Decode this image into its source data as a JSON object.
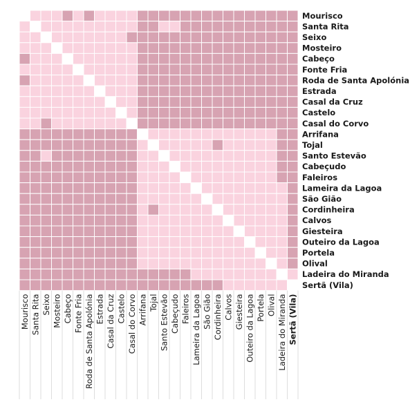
{
  "chart_data": {
    "type": "heatmap",
    "labels": [
      "Mourisco",
      "Santa Rita",
      "Seixo",
      "Mosteiro",
      "Cabeço",
      "Fonte Fria",
      "Roda de Santa Apolónia",
      "Estrada",
      "Casal da Cruz",
      "Castelo",
      "Casal do Corvo",
      "Arrifana",
      "Tojal",
      "Santo Estevão",
      "Cabeçudo",
      "Faleiros",
      "Lameira da Lagoa",
      "São Gião",
      "Cordinheira",
      "Calvos",
      "Giesteira",
      "Outeiro da Lagoa",
      "Portela",
      "Olival",
      "Ladeira do Miranda",
      "Sertã (Vila)"
    ],
    "highlighted_label": "Sertã (Vila)",
    "levels": {
      "light": 0,
      "dark": 1,
      "diagonal": null
    },
    "matrix": [
      [
        null,
        0,
        0,
        0,
        1,
        0,
        1,
        0,
        0,
        0,
        0,
        1,
        1,
        1,
        1,
        1,
        1,
        1,
        1,
        1,
        1,
        1,
        1,
        1,
        1,
        1
      ],
      [
        0,
        null,
        0,
        0,
        0,
        0,
        0,
        0,
        0,
        0,
        0,
        1,
        1,
        0,
        0,
        1,
        1,
        1,
        1,
        1,
        1,
        1,
        1,
        1,
        1,
        1
      ],
      [
        0,
        0,
        null,
        0,
        0,
        0,
        0,
        0,
        0,
        0,
        1,
        1,
        1,
        1,
        1,
        1,
        1,
        1,
        1,
        1,
        1,
        1,
        1,
        1,
        1,
        1
      ],
      [
        0,
        0,
        0,
        null,
        0,
        0,
        0,
        0,
        0,
        0,
        0,
        1,
        1,
        1,
        1,
        1,
        1,
        1,
        1,
        1,
        1,
        1,
        1,
        1,
        1,
        1
      ],
      [
        1,
        0,
        0,
        0,
        null,
        0,
        0,
        0,
        0,
        0,
        0,
        1,
        1,
        1,
        1,
        1,
        1,
        1,
        1,
        1,
        1,
        1,
        1,
        1,
        1,
        1
      ],
      [
        0,
        0,
        0,
        0,
        0,
        null,
        0,
        0,
        0,
        0,
        0,
        1,
        1,
        1,
        1,
        1,
        1,
        1,
        1,
        1,
        1,
        1,
        1,
        1,
        1,
        1
      ],
      [
        1,
        0,
        0,
        0,
        0,
        0,
        null,
        0,
        0,
        0,
        0,
        1,
        1,
        1,
        1,
        1,
        1,
        1,
        1,
        1,
        1,
        1,
        1,
        1,
        1,
        1
      ],
      [
        0,
        0,
        0,
        0,
        0,
        0,
        0,
        null,
        0,
        0,
        0,
        1,
        1,
        1,
        1,
        1,
        1,
        1,
        1,
        1,
        1,
        1,
        1,
        1,
        1,
        1
      ],
      [
        0,
        0,
        0,
        0,
        0,
        0,
        0,
        0,
        null,
        0,
        0,
        1,
        1,
        1,
        1,
        1,
        1,
        1,
        1,
        1,
        1,
        1,
        1,
        1,
        1,
        1
      ],
      [
        0,
        0,
        0,
        0,
        0,
        0,
        0,
        0,
        0,
        null,
        0,
        1,
        1,
        1,
        1,
        1,
        1,
        1,
        1,
        1,
        1,
        1,
        1,
        1,
        1,
        1
      ],
      [
        0,
        0,
        1,
        0,
        0,
        0,
        0,
        0,
        0,
        0,
        null,
        1,
        1,
        1,
        1,
        1,
        1,
        1,
        1,
        1,
        1,
        1,
        1,
        1,
        1,
        1
      ],
      [
        1,
        1,
        1,
        1,
        1,
        1,
        1,
        1,
        1,
        1,
        1,
        null,
        0,
        0,
        0,
        0,
        0,
        0,
        0,
        0,
        0,
        0,
        0,
        0,
        1,
        1
      ],
      [
        1,
        1,
        1,
        1,
        1,
        1,
        1,
        1,
        1,
        1,
        1,
        0,
        null,
        0,
        0,
        0,
        0,
        0,
        1,
        0,
        0,
        0,
        0,
        0,
        1,
        1
      ],
      [
        1,
        1,
        0,
        1,
        1,
        1,
        1,
        1,
        1,
        1,
        1,
        0,
        0,
        null,
        0,
        0,
        0,
        0,
        0,
        0,
        0,
        0,
        0,
        0,
        1,
        1
      ],
      [
        1,
        1,
        1,
        1,
        1,
        1,
        1,
        1,
        1,
        1,
        1,
        0,
        0,
        0,
        null,
        0,
        0,
        0,
        0,
        0,
        0,
        0,
        0,
        0,
        1,
        1
      ],
      [
        1,
        1,
        1,
        1,
        1,
        1,
        1,
        1,
        1,
        1,
        1,
        0,
        0,
        0,
        0,
        null,
        0,
        0,
        0,
        0,
        0,
        0,
        0,
        0,
        1,
        1
      ],
      [
        1,
        1,
        1,
        1,
        1,
        1,
        1,
        1,
        1,
        1,
        1,
        0,
        0,
        0,
        0,
        0,
        null,
        0,
        0,
        0,
        0,
        0,
        0,
        0,
        0,
        1
      ],
      [
        1,
        1,
        1,
        1,
        1,
        1,
        1,
        1,
        1,
        1,
        1,
        0,
        0,
        0,
        0,
        0,
        0,
        null,
        0,
        0,
        0,
        0,
        0,
        0,
        0,
        1
      ],
      [
        1,
        1,
        1,
        1,
        1,
        1,
        1,
        1,
        1,
        1,
        1,
        0,
        1,
        0,
        0,
        0,
        0,
        0,
        null,
        0,
        0,
        0,
        0,
        0,
        0,
        1
      ],
      [
        1,
        1,
        1,
        1,
        1,
        1,
        1,
        1,
        1,
        1,
        1,
        0,
        0,
        0,
        0,
        0,
        0,
        0,
        0,
        null,
        0,
        0,
        0,
        0,
        0,
        1
      ],
      [
        1,
        1,
        1,
        1,
        1,
        1,
        1,
        1,
        1,
        1,
        1,
        0,
        0,
        0,
        0,
        0,
        0,
        0,
        0,
        0,
        null,
        0,
        0,
        0,
        0,
        1
      ],
      [
        1,
        1,
        1,
        1,
        1,
        1,
        1,
        1,
        1,
        1,
        1,
        0,
        0,
        0,
        0,
        0,
        0,
        0,
        0,
        0,
        0,
        null,
        0,
        0,
        0,
        1
      ],
      [
        1,
        1,
        1,
        1,
        1,
        1,
        1,
        1,
        1,
        1,
        1,
        0,
        0,
        0,
        0,
        0,
        0,
        0,
        0,
        0,
        0,
        0,
        null,
        0,
        0,
        1
      ],
      [
        1,
        1,
        1,
        1,
        1,
        1,
        1,
        1,
        1,
        1,
        1,
        0,
        0,
        0,
        0,
        0,
        0,
        0,
        0,
        0,
        0,
        0,
        0,
        null,
        0,
        1
      ],
      [
        1,
        1,
        1,
        1,
        1,
        1,
        1,
        1,
        1,
        1,
        1,
        1,
        1,
        1,
        1,
        1,
        0,
        0,
        0,
        0,
        0,
        0,
        0,
        0,
        null,
        0
      ],
      [
        1,
        1,
        1,
        1,
        1,
        1,
        1,
        1,
        1,
        1,
        1,
        1,
        1,
        1,
        1,
        1,
        1,
        1,
        1,
        0,
        0,
        0,
        0,
        0,
        0,
        null
      ]
    ],
    "colors": {
      "light": "#fad3df",
      "dark": "#d7a3b2",
      "diagonal": "#ffffff",
      "grid": "#ffffff",
      "guide": "#dddddd"
    }
  }
}
